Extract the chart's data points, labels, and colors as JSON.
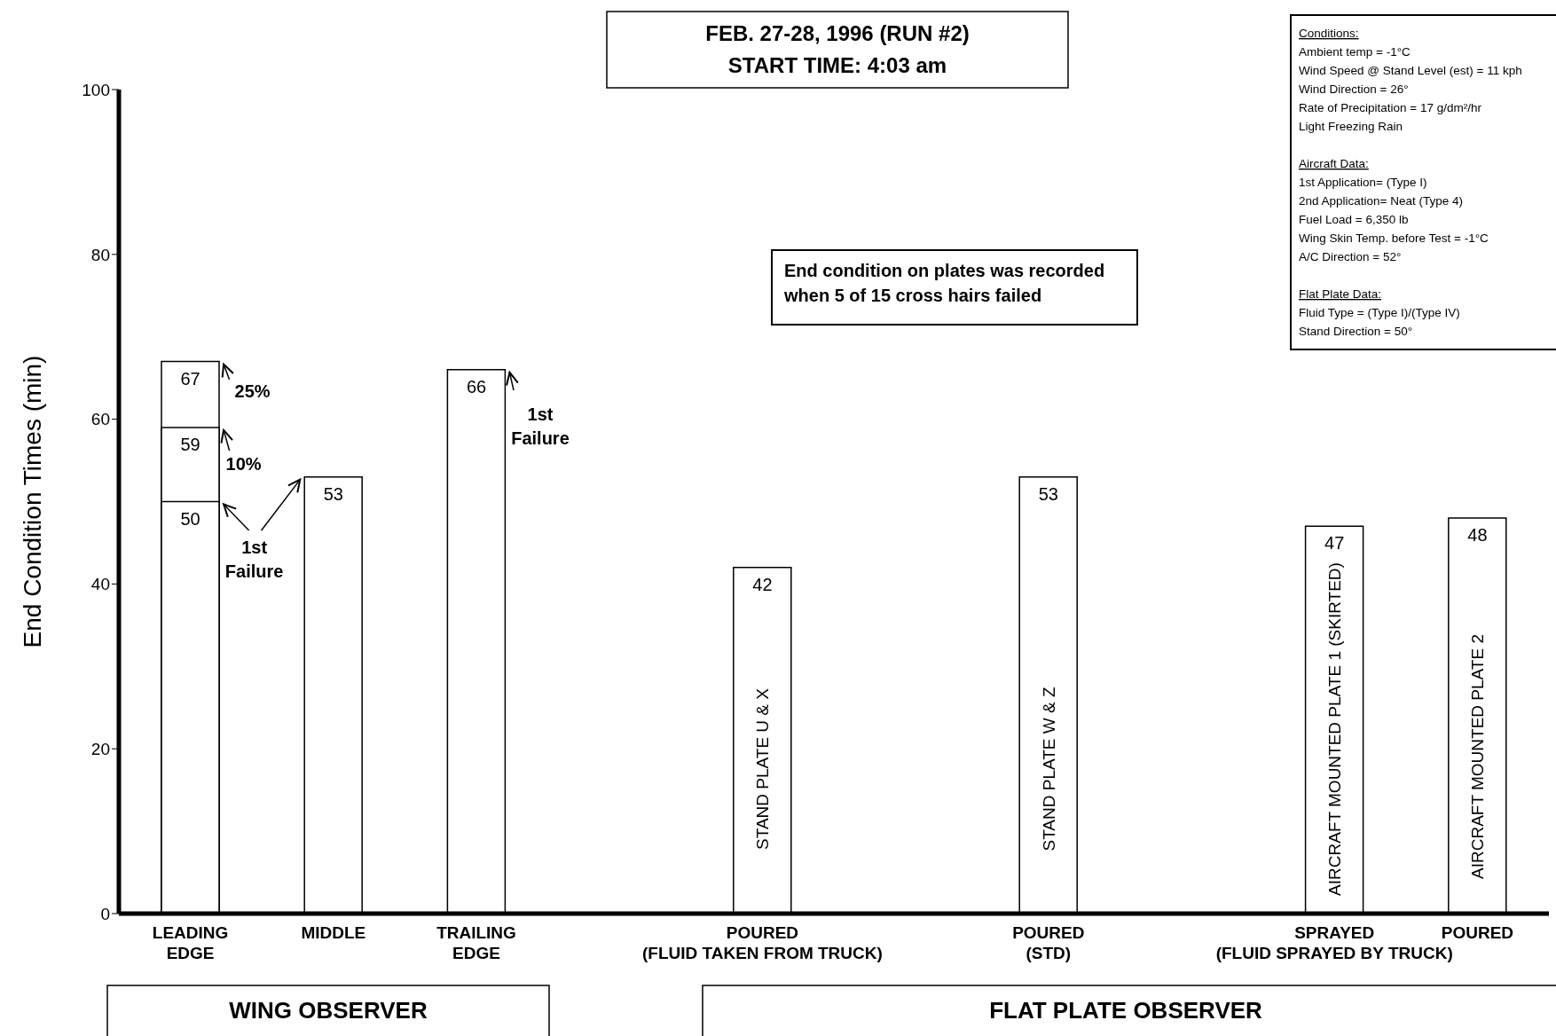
{
  "chart_data": {
    "type": "bar",
    "title": "FEB. 27-28, 1996 (RUN #2)",
    "subtitle": "START TIME: 4:03 am",
    "ylabel": "End Condition Times (min)",
    "categories": [
      "LEADING\nEDGE",
      "MIDDLE",
      "TRAILING\nEDGE",
      null,
      "POURED\n(FLUID TAKEN FROM TRUCK)",
      null,
      "POURED\n(STD)",
      null,
      "SPRAYED\n(FLUID SPRAYED BY TRUCK)",
      "POURED"
    ],
    "series": [
      {
        "color": "#ffffff",
        "values": [
          67,
          null,
          null,
          null,
          null,
          null,
          null,
          null,
          null,
          null
        ],
        "value_labels": [
          "67",
          null,
          null,
          null,
          null,
          null,
          null,
          null,
          null,
          null
        ]
      },
      {
        "color": "#ffffff",
        "values": [
          59,
          null,
          null,
          null,
          null,
          null,
          null,
          null,
          null,
          null
        ],
        "value_labels": [
          "59",
          null,
          null,
          null,
          null,
          null,
          null,
          null,
          null,
          null
        ]
      },
      {
        "color": "#ffffff",
        "values": [
          50,
          53,
          66,
          null,
          42,
          null,
          53,
          null,
          47,
          48
        ],
        "value_labels": [
          "50",
          "53",
          "66",
          null,
          "42",
          null,
          "53",
          null,
          "47",
          "48"
        ]
      }
    ],
    "ylim": [
      0,
      100
    ],
    "yticks": [
      0,
      20,
      40,
      60,
      80,
      100
    ],
    "annotations": [
      "25%",
      "10%",
      "1st\nFailure",
      "1st\nFailure",
      "STAND PLATE U & X",
      "STAND PLATE W & Z",
      "AIRCRAFT MOUNTED PLATE 1 (SKIRTED)",
      "AIRCRAFT MOUNTED PLATE 2",
      "End condition on plates was recorded\nwhen 5 of 15 cross hairs failed",
      "Conditions:\nAmbient temp = -1°C\nWind Speed @ Stand Level (est) = 11 kph\nWind Direction = 26°\nRate of Precipitation = 17 g/dm²/hr\nLight Freezing Rain\n\nAircraft Data:\n1st Application= (Type I)\n2nd Application= Neat (Type 4)\nFuel Load = 6,350 lb\nWing Skin Temp. before Test = -1°C\nA/C Direction = 52°\n\nFlat Plate Data:\nFluid Type = (Type I)/(Type IV)\nStand Direction = 50°",
      "WING OBSERVER",
      "FLAT PLATE OBSERVER"
    ]
  }
}
